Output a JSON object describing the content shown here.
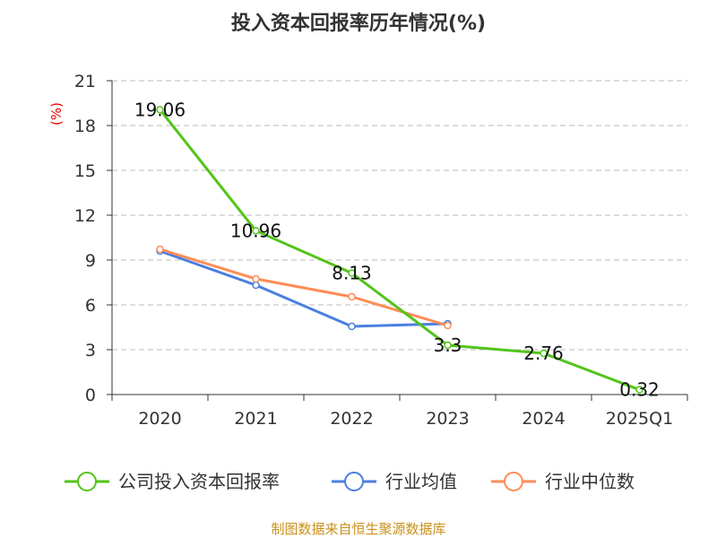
{
  "chart_data": {
    "type": "line",
    "title": "投入资本回报率历年情况(%)",
    "ylabel": "(%)",
    "xlabel": "",
    "categories": [
      "2020",
      "2021",
      "2022",
      "2023",
      "2024",
      "2025Q1"
    ],
    "ylim": [
      0,
      21
    ],
    "yticks": [
      0,
      3,
      6,
      9,
      12,
      15,
      18,
      21
    ],
    "grid": true,
    "legend_position": "bottom",
    "series": [
      {
        "name": "公司投入资本回报率",
        "color": "#52c41a",
        "values": [
          19.06,
          10.96,
          8.13,
          3.3,
          2.76,
          0.32
        ],
        "labels": [
          "19.06",
          "10.96",
          "8.13",
          "3.3",
          "2.76",
          "0.32"
        ]
      },
      {
        "name": "行业均值",
        "color": "#4a7fe0",
        "values": [
          9.6,
          7.32,
          4.56,
          4.74,
          null,
          null
        ]
      },
      {
        "name": "行业中位数",
        "color": "#ff8c55",
        "values": [
          9.72,
          7.74,
          6.54,
          4.62,
          null,
          null
        ]
      }
    ]
  },
  "source": "制图数据来自恒生聚源数据库"
}
